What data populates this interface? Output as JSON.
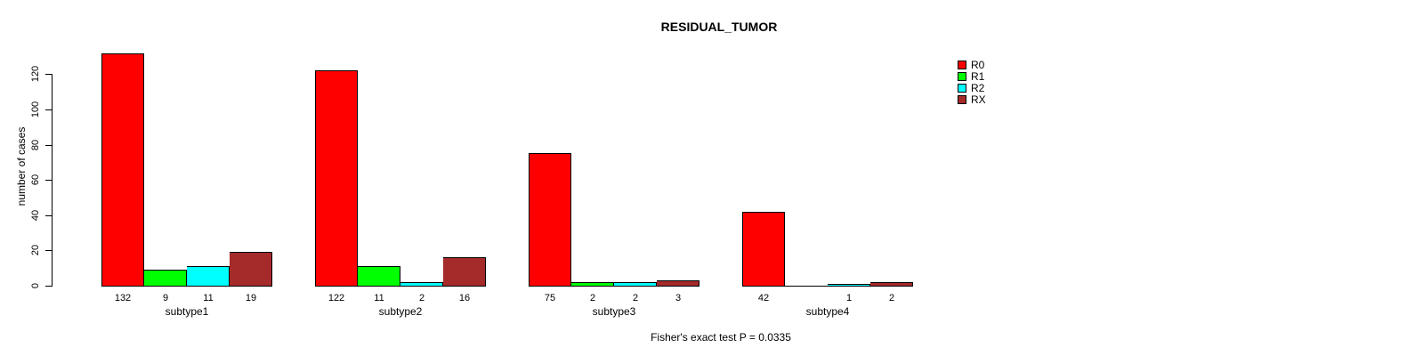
{
  "chart_data": {
    "type": "bar",
    "title": "RESIDUAL_TUMOR",
    "xlabel": "",
    "ylabel": "number of cases",
    "annotation": "Fisher's exact test P = 0.0335",
    "categories": [
      "subtype1",
      "subtype2",
      "subtype3",
      "subtype4"
    ],
    "series": [
      {
        "name": "R0",
        "color": "#FF0000",
        "values": [
          132,
          122,
          75,
          42
        ]
      },
      {
        "name": "R1",
        "color": "#00FF00",
        "values": [
          9,
          11,
          2,
          0
        ]
      },
      {
        "name": "R2",
        "color": "#00FFFF",
        "values": [
          11,
          2,
          2,
          1
        ]
      },
      {
        "name": "RX",
        "color": "#A52A2A",
        "values": [
          19,
          16,
          3,
          2
        ]
      }
    ],
    "yticks": [
      0,
      20,
      40,
      60,
      80,
      100,
      120
    ],
    "ylim": [
      0,
      132
    ],
    "grid": false,
    "legend_position": "right-of-plot",
    "bar_value_labels": true,
    "background": "#FFFFFF",
    "axis_color": "#000000"
  }
}
